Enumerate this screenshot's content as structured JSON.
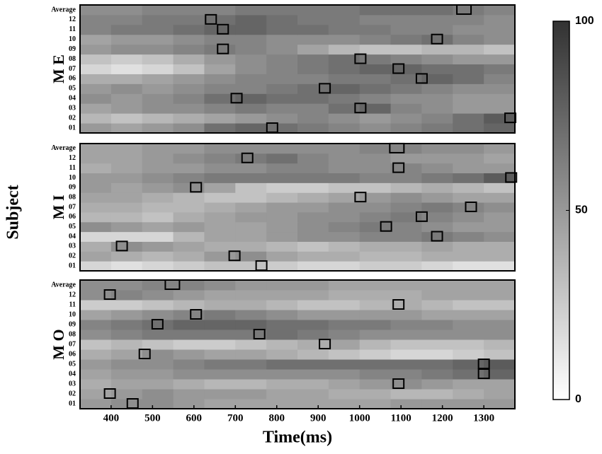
{
  "shared": {
    "xlabel": "Time(ms)",
    "ylabel": "Subject",
    "xlim": [
      325,
      1375
    ],
    "xticks": [
      400,
      500,
      600,
      700,
      800,
      900,
      1000,
      1100,
      1200,
      1300
    ],
    "colorbar": {
      "lim": [
        0,
        100
      ],
      "ticks": [
        0,
        50,
        100
      ]
    }
  },
  "chart_data": [
    {
      "type": "heatmap",
      "label": "M E",
      "categories": [
        "01",
        "02",
        "03",
        "04",
        "05",
        "06",
        "07",
        "08",
        "09",
        "10",
        "11",
        "12",
        "Average"
      ],
      "bins": [
        325,
        400,
        475,
        550,
        625,
        700,
        775,
        850,
        925,
        1000,
        1075,
        1150,
        1225,
        1300,
        1375
      ],
      "values": [
        [
          50,
          45,
          50,
          55,
          70,
          75,
          70,
          65,
          60,
          55,
          60,
          65,
          70,
          75
        ],
        [
          35,
          30,
          35,
          40,
          45,
          50,
          55,
          60,
          55,
          50,
          55,
          60,
          70,
          80
        ],
        [
          45,
          50,
          55,
          55,
          60,
          65,
          60,
          60,
          70,
          75,
          60,
          55,
          50,
          50
        ],
        [
          55,
          50,
          55,
          60,
          70,
          75,
          70,
          70,
          65,
          60,
          55,
          55,
          50,
          50
        ],
        [
          50,
          55,
          50,
          55,
          60,
          60,
          65,
          70,
          75,
          70,
          65,
          60,
          55,
          55
        ],
        [
          40,
          40,
          45,
          50,
          55,
          60,
          60,
          60,
          65,
          65,
          70,
          75,
          70,
          60
        ],
        [
          20,
          15,
          20,
          30,
          45,
          55,
          60,
          65,
          70,
          75,
          75,
          70,
          70,
          65
        ],
        [
          30,
          25,
          30,
          40,
          50,
          55,
          60,
          65,
          70,
          65,
          60,
          55,
          50,
          50
        ],
        [
          50,
          55,
          55,
          60,
          65,
          60,
          55,
          45,
          35,
          30,
          30,
          35,
          35,
          30
        ],
        [
          45,
          50,
          50,
          55,
          60,
          60,
          55,
          55,
          55,
          60,
          65,
          70,
          60,
          55
        ],
        [
          60,
          65,
          65,
          70,
          75,
          75,
          70,
          70,
          65,
          65,
          60,
          60,
          55,
          55
        ],
        [
          60,
          60,
          65,
          65,
          70,
          75,
          70,
          65,
          65,
          60,
          60,
          60,
          60,
          55
        ],
        [
          55,
          55,
          60,
          60,
          60,
          65,
          65,
          65,
          65,
          70,
          70,
          70,
          65,
          60
        ]
      ],
      "peaks": [
        789,
        1364,
        1002,
        703,
        916,
        1150,
        1094,
        1002,
        670,
        1187,
        670,
        641,
        1252
      ]
    },
    {
      "type": "heatmap",
      "label": "M I",
      "categories": [
        "01",
        "02",
        "03",
        "04",
        "05",
        "06",
        "07",
        "08",
        "09",
        "10",
        "11",
        "12",
        "Average"
      ],
      "bins": [
        325,
        400,
        475,
        550,
        625,
        700,
        775,
        850,
        925,
        1000,
        1075,
        1150,
        1225,
        1300,
        1375
      ],
      "values": [
        [
          20,
          15,
          20,
          25,
          30,
          30,
          25,
          20,
          20,
          25,
          25,
          20,
          15,
          15
        ],
        [
          45,
          40,
          35,
          40,
          50,
          55,
          45,
          40,
          40,
          35,
          35,
          40,
          40,
          40
        ],
        [
          40,
          55,
          50,
          45,
          40,
          40,
          35,
          30,
          35,
          40,
          40,
          45,
          40,
          40
        ],
        [
          20,
          20,
          20,
          35,
          45,
          45,
          50,
          55,
          55,
          60,
          60,
          65,
          60,
          55
        ],
        [
          55,
          50,
          45,
          50,
          45,
          45,
          50,
          55,
          60,
          65,
          60,
          55,
          50,
          50
        ],
        [
          35,
          35,
          30,
          40,
          45,
          50,
          50,
          55,
          55,
          60,
          65,
          60,
          55,
          50
        ],
        [
          40,
          40,
          35,
          35,
          40,
          45,
          50,
          50,
          55,
          55,
          60,
          65,
          60,
          55
        ],
        [
          45,
          45,
          40,
          35,
          30,
          30,
          35,
          40,
          45,
          50,
          55,
          50,
          45,
          45
        ],
        [
          50,
          45,
          50,
          55,
          45,
          30,
          25,
          25,
          30,
          30,
          35,
          40,
          35,
          30
        ],
        [
          50,
          50,
          55,
          60,
          65,
          65,
          65,
          65,
          65,
          60,
          60,
          65,
          70,
          80
        ],
        [
          40,
          45,
          50,
          50,
          55,
          55,
          60,
          60,
          55,
          55,
          60,
          55,
          50,
          50
        ],
        [
          45,
          45,
          50,
          55,
          60,
          65,
          70,
          60,
          55,
          55,
          50,
          50,
          50,
          45
        ],
        [
          45,
          45,
          50,
          50,
          55,
          55,
          55,
          55,
          55,
          60,
          60,
          55,
          55,
          50
        ]
      ],
      "peaks": [
        763,
        698,
        426,
        1187,
        1064,
        1150,
        1269,
        1002,
        605,
        1366,
        1094,
        729,
        1090
      ]
    },
    {
      "type": "heatmap",
      "label": "M O",
      "categories": [
        "01",
        "02",
        "03",
        "04",
        "05",
        "06",
        "07",
        "08",
        "09",
        "10",
        "11",
        "12",
        "Average"
      ],
      "bins": [
        325,
        400,
        475,
        550,
        625,
        700,
        775,
        850,
        925,
        1000,
        1075,
        1150,
        1225,
        1300,
        1375
      ],
      "values": [
        [
          50,
          55,
          55,
          50,
          45,
          45,
          45,
          45,
          45,
          45,
          50,
          50,
          50,
          50
        ],
        [
          45,
          50,
          55,
          50,
          50,
          50,
          45,
          45,
          40,
          40,
          35,
          35,
          40,
          45
        ],
        [
          40,
          45,
          45,
          40,
          35,
          35,
          40,
          40,
          45,
          50,
          55,
          50,
          45,
          45
        ],
        [
          45,
          50,
          50,
          55,
          55,
          55,
          55,
          55,
          55,
          60,
          60,
          65,
          70,
          75
        ],
        [
          50,
          55,
          55,
          60,
          65,
          65,
          70,
          70,
          70,
          70,
          70,
          70,
          75,
          80
        ],
        [
          40,
          45,
          55,
          50,
          45,
          45,
          40,
          35,
          30,
          25,
          20,
          20,
          25,
          30
        ],
        [
          30,
          35,
          30,
          25,
          25,
          30,
          35,
          40,
          45,
          35,
          30,
          30,
          30,
          35
        ],
        [
          55,
          60,
          65,
          65,
          65,
          65,
          70,
          65,
          60,
          55,
          55,
          55,
          55,
          55
        ],
        [
          60,
          65,
          70,
          75,
          75,
          75,
          70,
          70,
          65,
          65,
          60,
          60,
          55,
          55
        ],
        [
          45,
          50,
          55,
          60,
          65,
          60,
          55,
          50,
          50,
          50,
          50,
          45,
          45,
          45
        ],
        [
          25,
          25,
          30,
          35,
          40,
          40,
          35,
          30,
          30,
          35,
          40,
          35,
          30,
          30
        ],
        [
          55,
          60,
          55,
          50,
          45,
          45,
          45,
          45,
          40,
          40,
          40,
          45,
          45,
          45
        ],
        [
          55,
          55,
          60,
          60,
          55,
          50,
          50,
          50,
          45,
          45,
          45,
          45,
          45,
          45
        ]
      ],
      "peaks": [
        452,
        397,
        1094,
        1300,
        1300,
        481,
        916,
        758,
        512,
        605,
        1094,
        397,
        548
      ]
    }
  ]
}
